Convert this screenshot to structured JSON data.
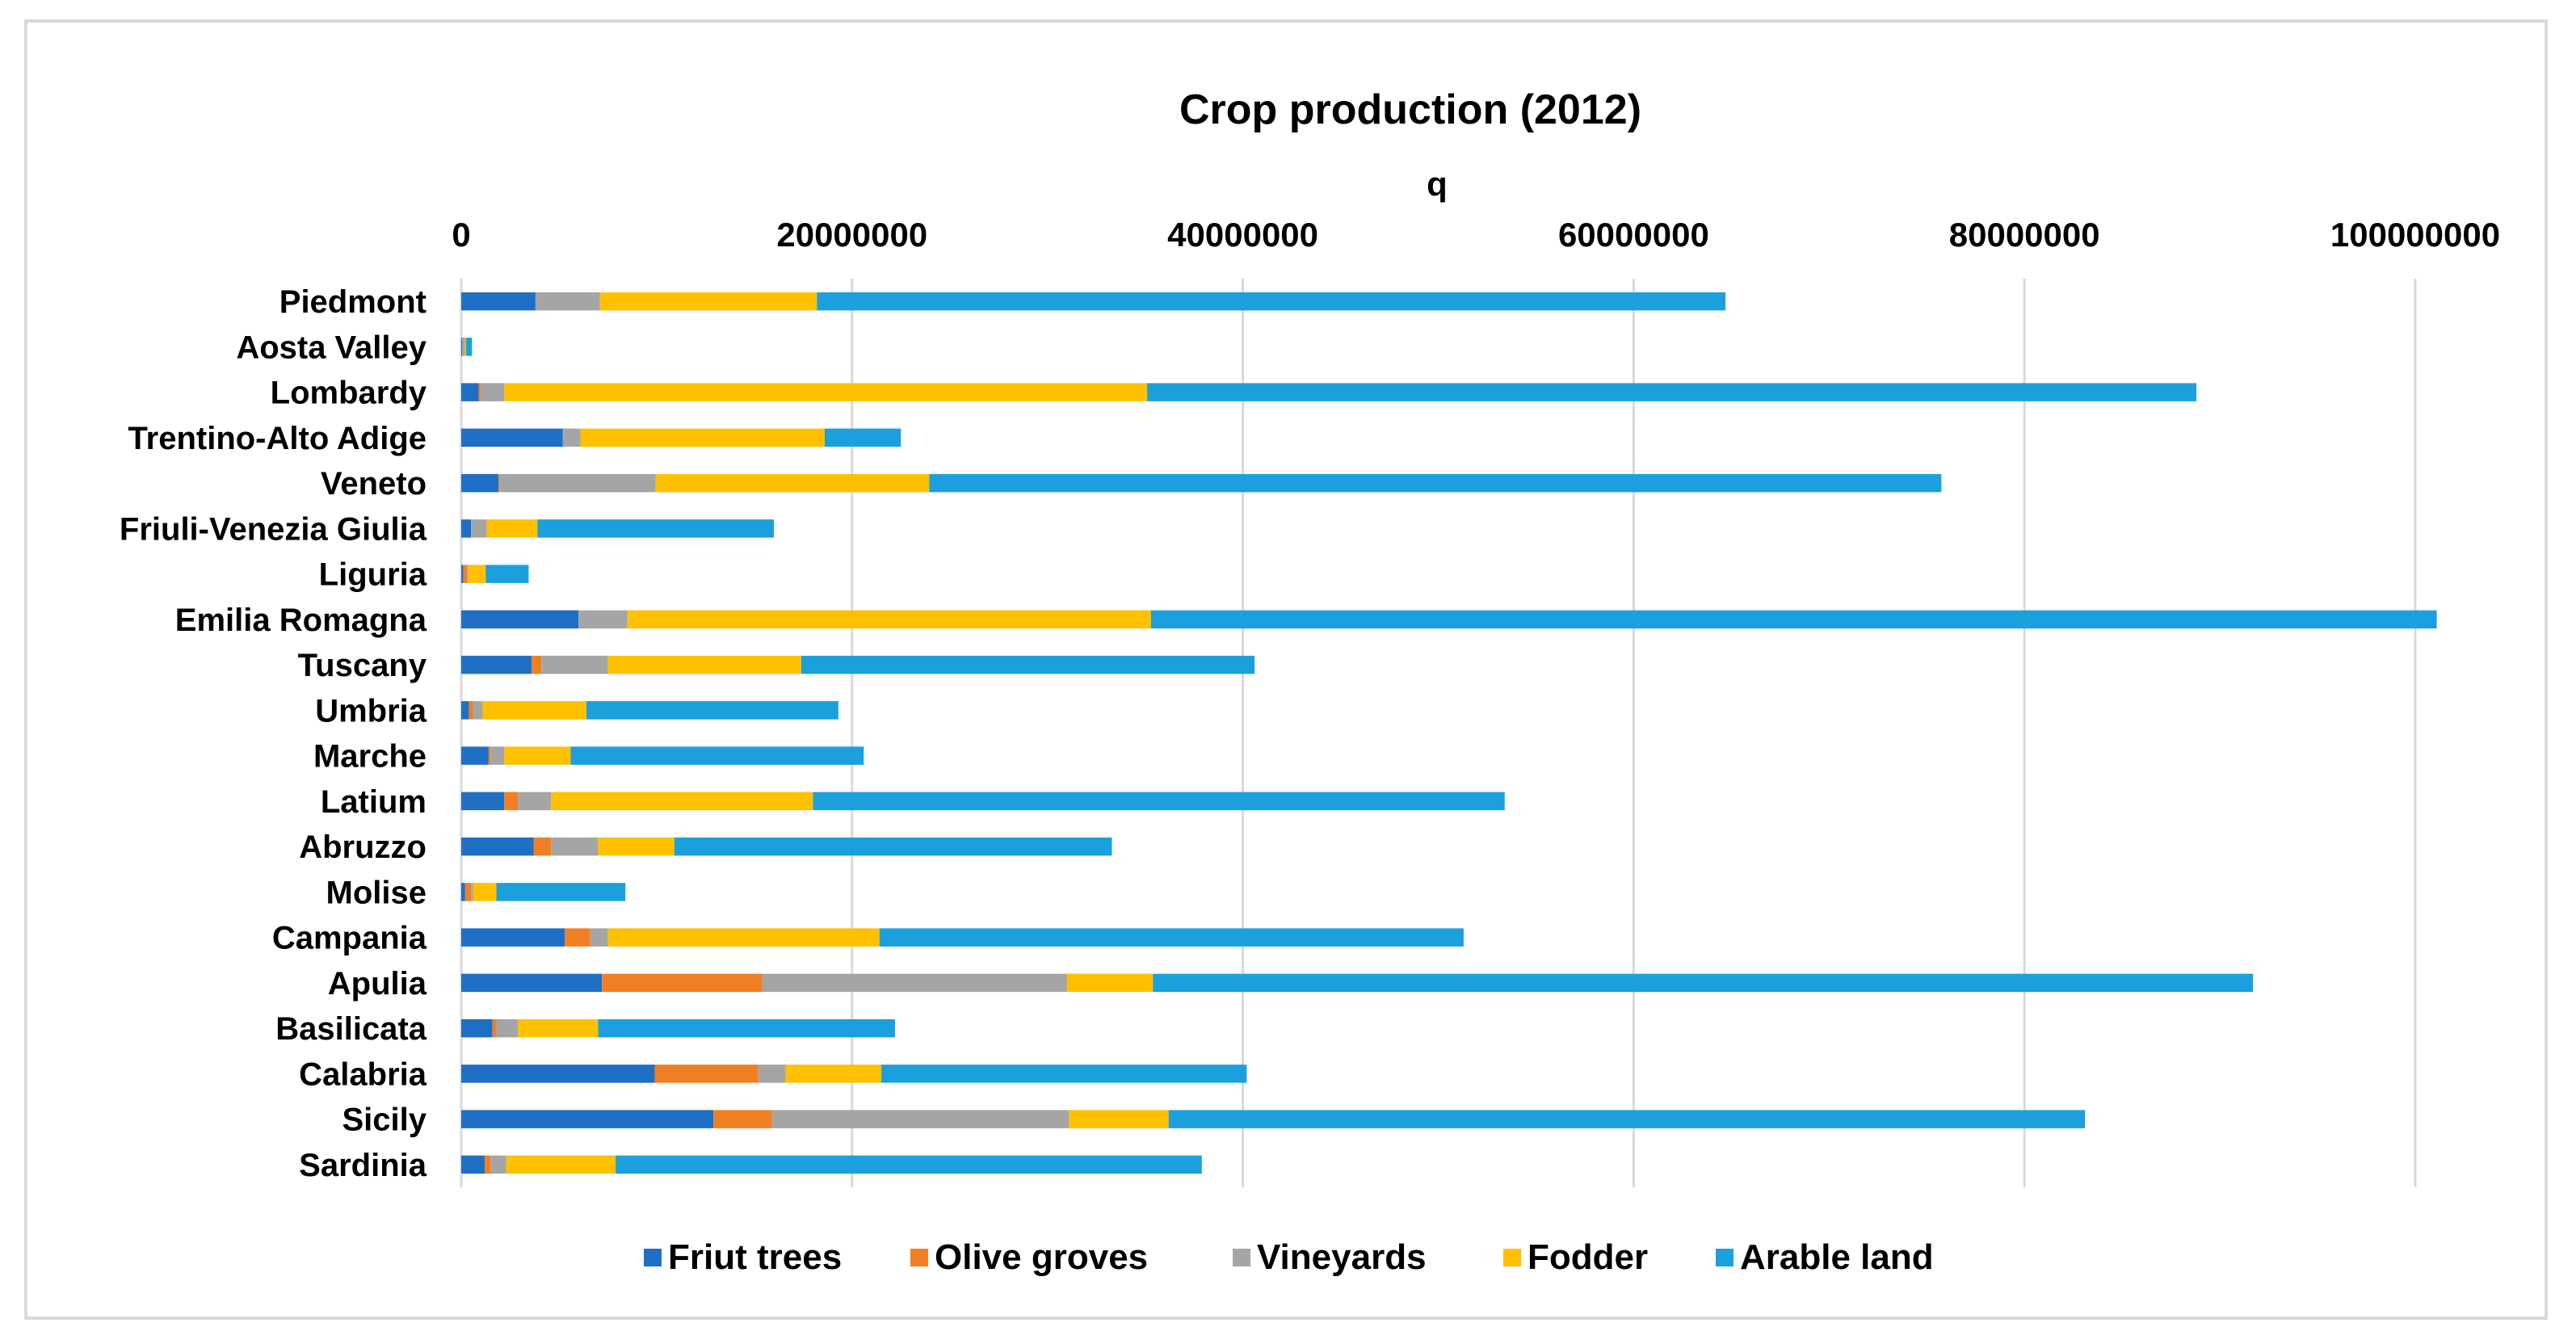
{
  "chart_data": {
    "type": "bar",
    "orientation": "horizontal",
    "stacked": true,
    "title": "Crop production (2012)",
    "xlabel": "q",
    "ylabel": "",
    "xlim": [
      0,
      100000000
    ],
    "xticks": [
      0,
      20000000,
      40000000,
      60000000,
      80000000,
      100000000
    ],
    "xtick_labels": [
      "0",
      "20000000",
      "40000000",
      "60000000",
      "80000000",
      "100000000"
    ],
    "x_axis_position": "top",
    "grid": true,
    "legend_position": "bottom",
    "categories": [
      "Piedmont",
      "Aosta Valley",
      "Lombardy",
      "Trentino-Alto Adige",
      "Veneto",
      "Friuli-Venezia Giulia",
      "Liguria",
      "Emilia Romagna",
      "Tuscany",
      "Umbria",
      "Marche",
      "Latium",
      "Abruzzo",
      "Molise",
      "Campania",
      "Apulia",
      "Basilicata",
      "Calabria",
      "Sicily",
      "Sardinia"
    ],
    "series": [
      {
        "name": "Friut trees",
        "color": "#1F6FC5",
        "values": [
          3800000,
          50000,
          900000,
          5200000,
          1900000,
          500000,
          100000,
          6000000,
          3600000,
          400000,
          1400000,
          2200000,
          3700000,
          200000,
          5300000,
          7200000,
          1600000,
          9900000,
          12900000,
          1200000
        ]
      },
      {
        "name": "Olive groves",
        "color": "#F07F23",
        "values": [
          0,
          0,
          100000,
          0,
          50000,
          0,
          200000,
          0,
          500000,
          200000,
          100000,
          700000,
          900000,
          300000,
          1300000,
          8200000,
          200000,
          5300000,
          3000000,
          300000
        ]
      },
      {
        "name": "Vineyards",
        "color": "#A5A5A5",
        "values": [
          3300000,
          150000,
          1200000,
          900000,
          8000000,
          800000,
          50000,
          2500000,
          3400000,
          500000,
          700000,
          1700000,
          2400000,
          100000,
          900000,
          15600000,
          1100000,
          1400000,
          15200000,
          800000
        ]
      },
      {
        "name": "Fodder",
        "color": "#FFC000",
        "values": [
          11100000,
          50000,
          32900000,
          12500000,
          14000000,
          2600000,
          900000,
          26800000,
          9900000,
          5300000,
          3400000,
          13400000,
          3900000,
          1200000,
          13900000,
          4400000,
          4100000,
          4900000,
          5100000,
          5600000
        ]
      },
      {
        "name": "Arable land",
        "color": "#1CA0DD",
        "values": [
          46500000,
          300000,
          53700000,
          3900000,
          51800000,
          12100000,
          2200000,
          65800000,
          23200000,
          12900000,
          15000000,
          35400000,
          22400000,
          6600000,
          29900000,
          56300000,
          15200000,
          18700000,
          46900000,
          30000000
        ]
      }
    ]
  }
}
